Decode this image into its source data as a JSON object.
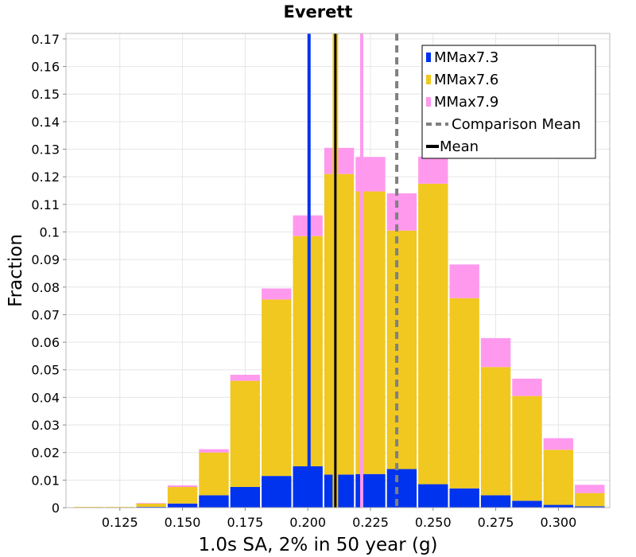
{
  "chart_data": {
    "type": "bar",
    "stacked": true,
    "title": "Everett",
    "xlabel": "1.0s SA, 2% in 50 year (g)",
    "ylabel": "Fraction",
    "xlim": [
      0.1035,
      0.3205
    ],
    "ylim": [
      0,
      0.172
    ],
    "x_ticks": [
      0.125,
      0.15,
      0.175,
      0.2,
      0.225,
      0.25,
      0.275,
      0.3
    ],
    "x_tick_labels": [
      "0.125",
      "0.150",
      "0.175",
      "0.200",
      "0.225",
      "0.250",
      "0.275",
      "0.300"
    ],
    "y_ticks": [
      0,
      0.01,
      0.02,
      0.03,
      0.04,
      0.05,
      0.06,
      0.07,
      0.08,
      0.09,
      0.1,
      0.11,
      0.12,
      0.13,
      0.14,
      0.15,
      0.16,
      0.17
    ],
    "y_tick_labels": [
      "0",
      "0.01",
      "0.02",
      "0.03",
      "0.04",
      "0.05",
      "0.06",
      "0.07",
      "0.08",
      "0.09",
      "0.1",
      "0.11",
      "0.12",
      "0.13",
      "0.14",
      "0.15",
      "0.16",
      "0.17"
    ],
    "grid": true,
    "legend_position": "top-right",
    "bin_width": 0.0125,
    "x": [
      0.1125,
      0.125,
      0.1375,
      0.15,
      0.1625,
      0.175,
      0.1875,
      0.2,
      0.2125,
      0.225,
      0.2375,
      0.25,
      0.2625,
      0.275,
      0.2875,
      0.3,
      0.3125
    ],
    "series": [
      {
        "name": "MMax7.3",
        "color": "#0033ee",
        "values": [
          0.0,
          0.0,
          0.0003,
          0.0015,
          0.0045,
          0.0075,
          0.0115,
          0.015,
          0.012,
          0.0122,
          0.014,
          0.0085,
          0.007,
          0.0045,
          0.0025,
          0.001,
          0.0005
        ]
      },
      {
        "name": "MMax7.6",
        "color": "#f0c820",
        "values": [
          0.0003,
          0.0003,
          0.0012,
          0.006,
          0.0155,
          0.0385,
          0.064,
          0.0835,
          0.109,
          0.1025,
          0.0865,
          0.109,
          0.069,
          0.0465,
          0.038,
          0.02,
          0.0048
        ]
      },
      {
        "name": "MMax7.9",
        "color": "#ff99ee",
        "values": [
          0.0,
          0.0,
          0.0002,
          0.0006,
          0.0012,
          0.0022,
          0.004,
          0.0075,
          0.0095,
          0.0125,
          0.0135,
          0.0098,
          0.0122,
          0.0105,
          0.0063,
          0.0042,
          0.003
        ]
      }
    ],
    "vertical_lines": [
      {
        "name": "MMax7.3",
        "x": 0.2005,
        "color": "#0033ee",
        "legend": false
      },
      {
        "name": "MMax7.9",
        "x": 0.2215,
        "color": "#ff99ee",
        "legend": false
      },
      {
        "name": "Comparison Mean",
        "x": 0.2355,
        "color": "#808080",
        "style": "dashed",
        "legend": true
      },
      {
        "name": "Mean",
        "x": 0.211,
        "color": "#000000",
        "style": "solid",
        "legend": true,
        "highlight": "#f0c820"
      }
    ],
    "legend": [
      "MMax7.3",
      "MMax7.6",
      "MMax7.9",
      "Comparison Mean",
      "Mean"
    ]
  }
}
